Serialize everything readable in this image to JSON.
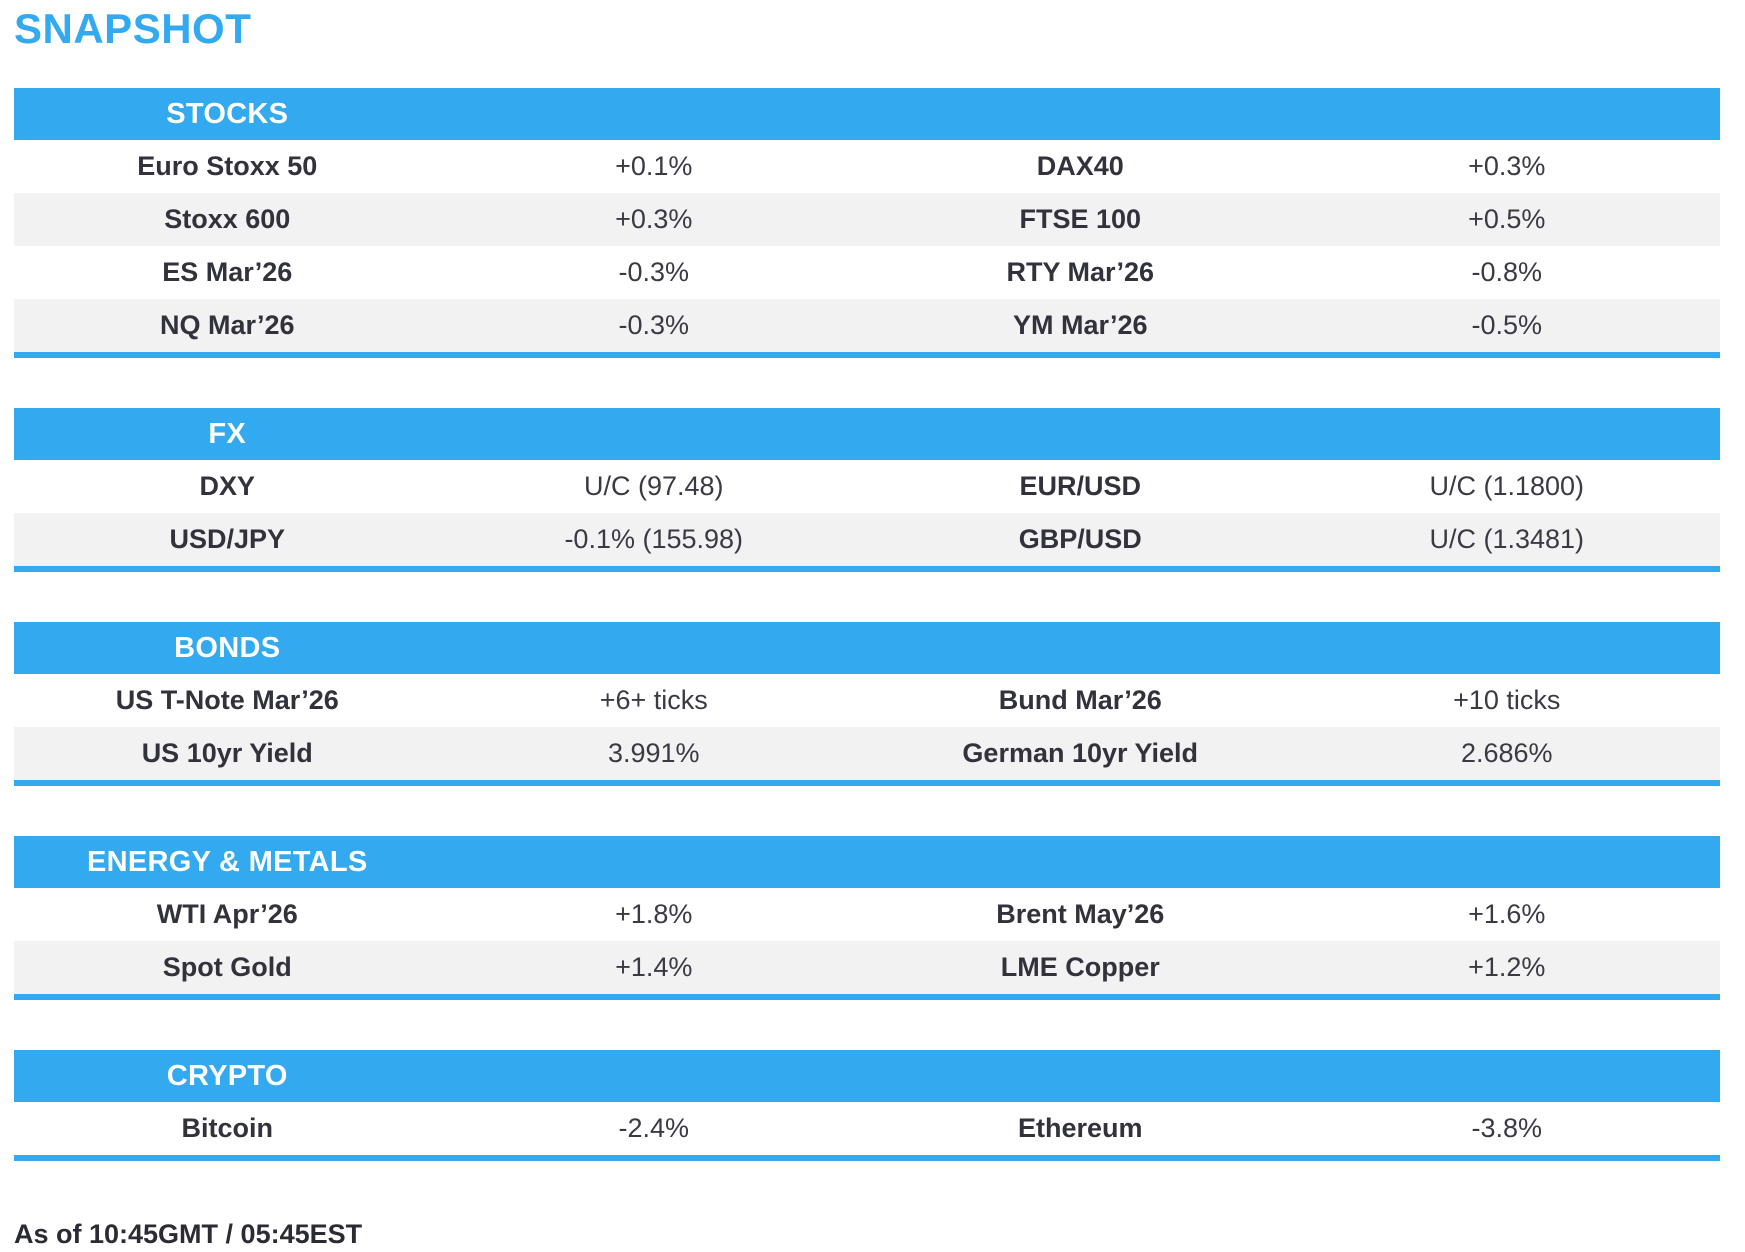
{
  "title": "SNAPSHOT",
  "footer": "As of 10:45GMT / 05:45EST",
  "colors": {
    "accent": "#33A9F0",
    "row_alt": "#F2F2F2",
    "header_text": "#FFFFFF",
    "label_text": "#32323C",
    "value_text": "#3A3A44"
  },
  "sections": [
    {
      "header": "STOCKS",
      "rows": [
        [
          "Euro Stoxx 50",
          "+0.1%",
          "DAX40",
          "+0.3%"
        ],
        [
          "Stoxx 600",
          "+0.3%",
          "FTSE 100",
          "+0.5%"
        ],
        [
          "ES Mar’26",
          "-0.3%",
          "RTY Mar’26",
          "-0.8%"
        ],
        [
          "NQ Mar’26",
          "-0.3%",
          "YM Mar’26",
          "-0.5%"
        ]
      ]
    },
    {
      "header": "FX",
      "rows": [
        [
          "DXY",
          "U/C (97.48)",
          "EUR/USD",
          "U/C (1.1800)"
        ],
        [
          "USD/JPY",
          "-0.1% (155.98)",
          "GBP/USD",
          "U/C (1.3481)"
        ]
      ]
    },
    {
      "header": "BONDS",
      "rows": [
        [
          "US T-Note Mar’26",
          "+6+ ticks",
          "Bund Mar’26",
          "+10 ticks"
        ],
        [
          "US 10yr Yield",
          "3.991%",
          "German 10yr Yield",
          "2.686%"
        ]
      ]
    },
    {
      "header": "ENERGY & METALS",
      "rows": [
        [
          "WTI Apr’26",
          "+1.8%",
          "Brent May’26",
          "+1.6%"
        ],
        [
          "Spot Gold",
          "+1.4%",
          "LME Copper",
          "+1.2%"
        ]
      ]
    },
    {
      "header": "CRYPTO",
      "rows": [
        [
          "Bitcoin",
          "-2.4%",
          "Ethereum",
          "-3.8%"
        ]
      ]
    }
  ]
}
